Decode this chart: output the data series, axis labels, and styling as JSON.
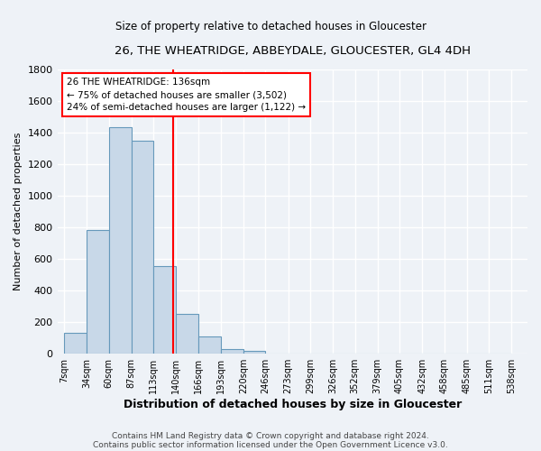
{
  "title": "26, THE WHEATRIDGE, ABBEYDALE, GLOUCESTER, GL4 4DH",
  "subtitle": "Size of property relative to detached houses in Gloucester",
  "xlabel": "Distribution of detached houses by size in Gloucester",
  "ylabel": "Number of detached properties",
  "bin_labels": [
    "7sqm",
    "34sqm",
    "60sqm",
    "87sqm",
    "113sqm",
    "140sqm",
    "166sqm",
    "193sqm",
    "220sqm",
    "246sqm",
    "273sqm",
    "299sqm",
    "326sqm",
    "352sqm",
    "379sqm",
    "405sqm",
    "432sqm",
    "458sqm",
    "485sqm",
    "511sqm",
    "538sqm"
  ],
  "bin_edges": [
    7,
    34,
    60,
    87,
    113,
    140,
    166,
    193,
    220,
    246,
    273,
    299,
    326,
    352,
    379,
    405,
    432,
    458,
    485,
    511,
    538
  ],
  "bar_heights": [
    130,
    785,
    1435,
    1345,
    555,
    250,
    110,
    30,
    20,
    0,
    0,
    0,
    0,
    0,
    0,
    0,
    0,
    0,
    0,
    0
  ],
  "bar_color": "#c8d8e8",
  "bar_edge_color": "#6699bb",
  "vline_x": 136,
  "vline_color": "red",
  "annotation_line1": "26 THE WHEATRIDGE: 136sqm",
  "annotation_line2": "← 75% of detached houses are smaller (3,502)",
  "annotation_line3": "24% of semi-detached houses are larger (1,122) →",
  "annotation_box_color": "white",
  "annotation_box_edge": "red",
  "ylim": [
    0,
    1800
  ],
  "yticks": [
    0,
    200,
    400,
    600,
    800,
    1000,
    1200,
    1400,
    1600,
    1800
  ],
  "footer1": "Contains HM Land Registry data © Crown copyright and database right 2024.",
  "footer2": "Contains public sector information licensed under the Open Government Licence v3.0.",
  "bg_color": "#eef2f7",
  "plot_bg_color": "#eef2f7",
  "grid_color": "#ffffff"
}
